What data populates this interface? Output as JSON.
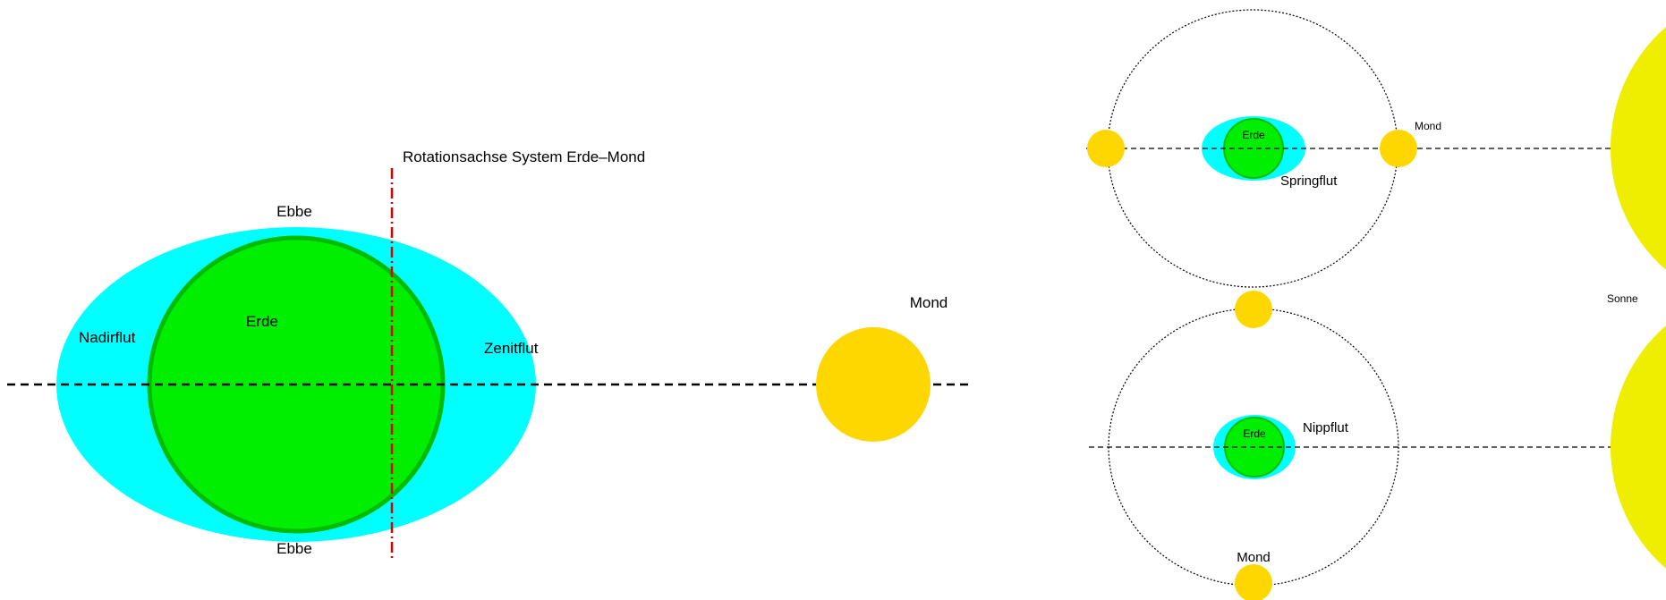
{
  "colors": {
    "background": "#ffffff",
    "water": "#00ffff",
    "earth": "#00ee00",
    "earth_outline": "#00bb00",
    "moon": "#ffd700",
    "sun": "#f0ee00",
    "axis_line": "#000000",
    "rotation_axis": "#e00000"
  },
  "left_diagram": {
    "rotation_axis_label": "Rotationsachse System Erde–Mond",
    "earth_label": "Erde",
    "moon_label": "Mond",
    "ebbe_top": "Ebbe",
    "ebbe_bottom": "Ebbe",
    "nadirflut": "Nadirflut",
    "zenitflut": "Zenitflut"
  },
  "spring_tide": {
    "earth_label": "Erde",
    "moon_label": "Mond",
    "tide_label": "Springflut"
  },
  "neap_tide": {
    "earth_label": "Erde",
    "moon_label": "Mond",
    "tide_label": "Nippflut"
  },
  "sun_label": "Sonne"
}
